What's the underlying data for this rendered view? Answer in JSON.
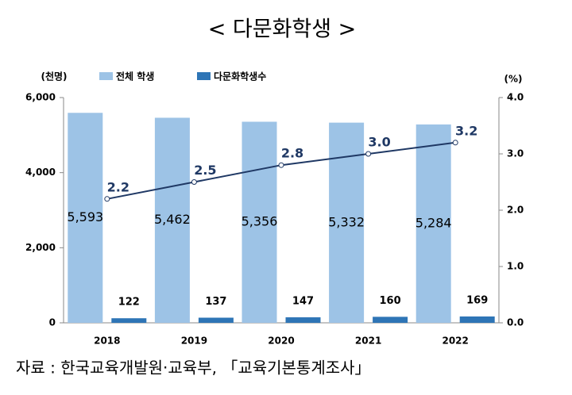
{
  "chart_data": {
    "type": "bar",
    "title": "< 다문화학생 >",
    "y_axis_label": "(천명)",
    "y2_axis_label": "(%)",
    "categories": [
      "2018",
      "2019",
      "2020",
      "2021",
      "2022"
    ],
    "series": [
      {
        "name": "전체 학생",
        "color": "#9dc3e6",
        "values": [
          5593,
          5462,
          5356,
          5332,
          5284
        ],
        "value_labels": [
          "5,593",
          "5,462",
          "5,356",
          "5,332",
          "5,284"
        ]
      },
      {
        "name": "다문화학생수",
        "color": "#2e75b6",
        "values": [
          122,
          137,
          147,
          160,
          169
        ]
      },
      {
        "type": "line",
        "axis": "y2",
        "color": "#1f3864",
        "values": [
          2.2,
          2.5,
          2.8,
          3.0,
          3.2
        ],
        "value_labels": [
          "2.2",
          "2.5",
          "2.8",
          "3.0",
          "3.2"
        ]
      }
    ],
    "ylim": [
      0,
      6000
    ],
    "yticks": [
      0,
      {
        "value": 2000,
        "label": "2,000"
      },
      {
        "value": 4000,
        "label": "4,000"
      },
      {
        "value": 6000,
        "label": "6,000"
      }
    ],
    "y2lim": [
      0,
      4
    ],
    "y2ticks": [
      {
        "value": 0,
        "label": "0.0"
      },
      {
        "value": 1,
        "label": "1.0"
      },
      {
        "value": 2,
        "label": "2.0"
      },
      {
        "value": 3,
        "label": "3.0"
      },
      {
        "value": 4,
        "label": "4.0"
      }
    ],
    "source": "자료 : 한국교육개발원·교육부, 「교육기본통계조사」"
  }
}
